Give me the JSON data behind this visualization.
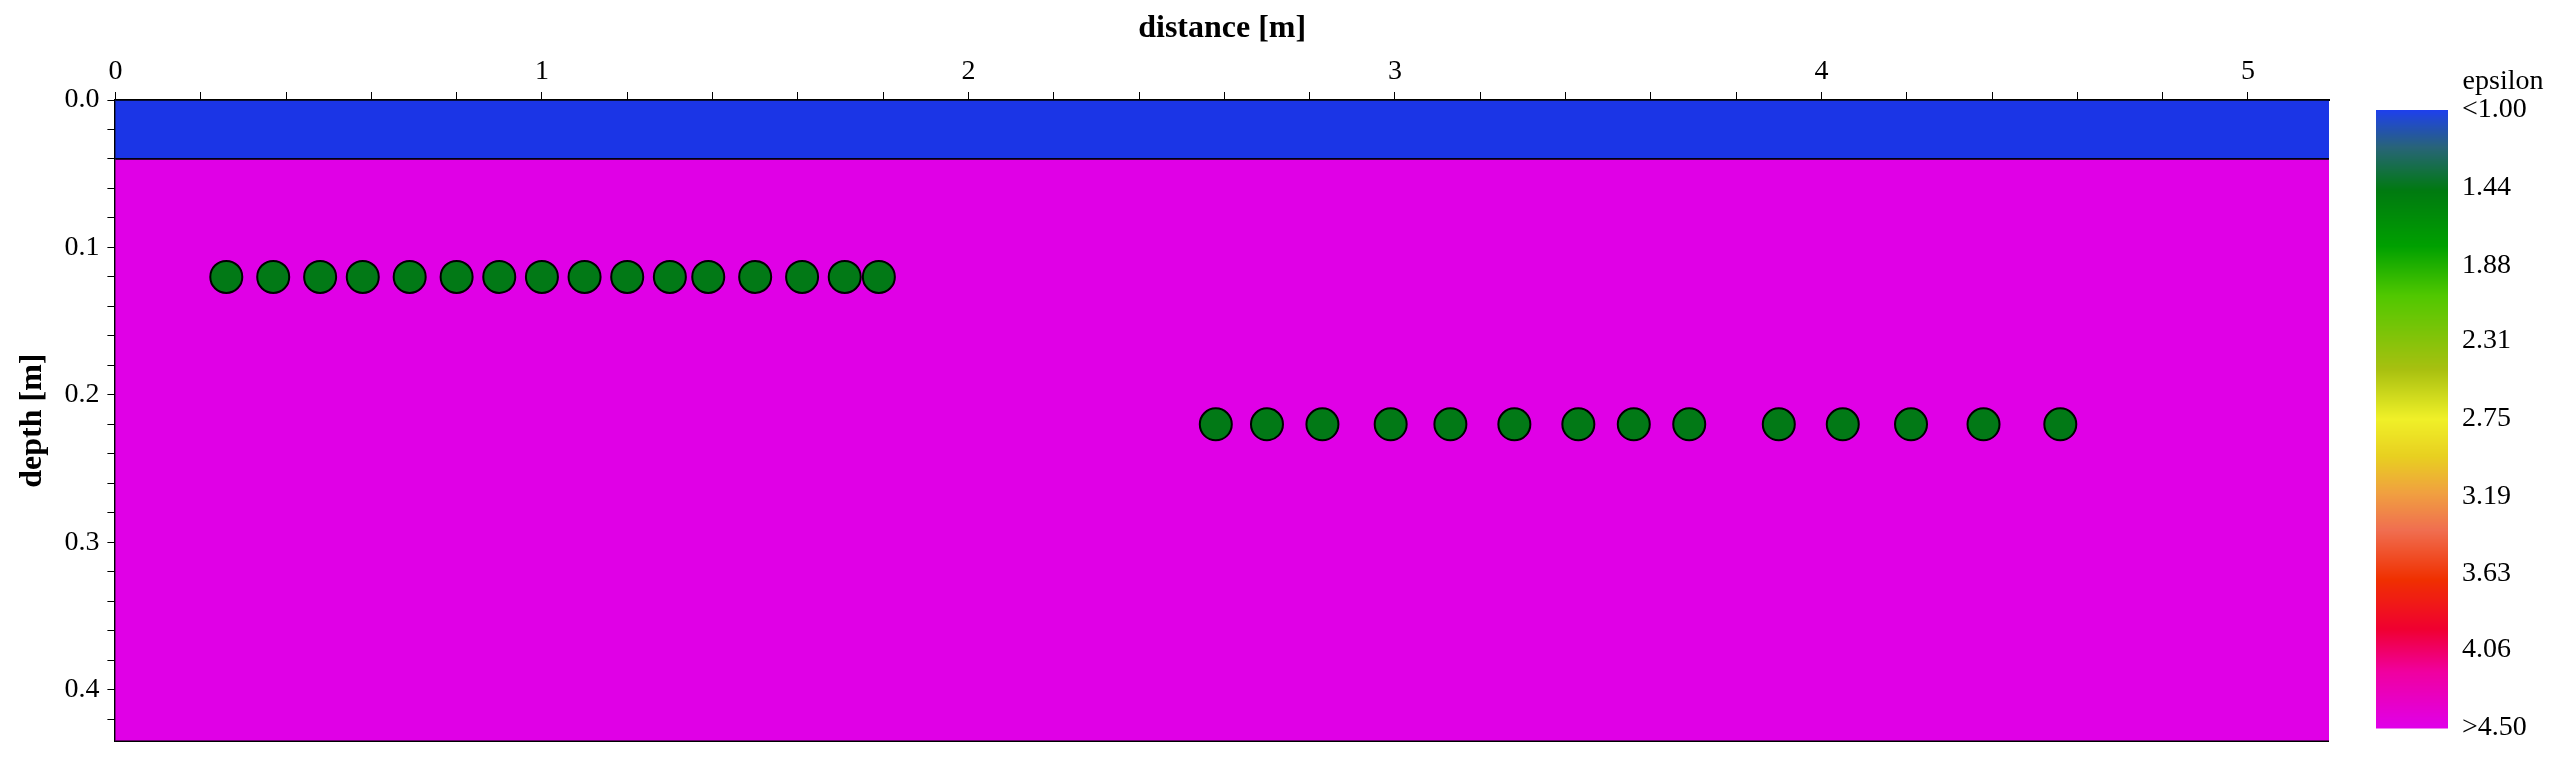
{
  "chart_data": {
    "type": "scatter",
    "xlabel": "distance [m]",
    "ylabel": "depth [m]",
    "clabel": "epsilon",
    "xlim": [
      0,
      5.19
    ],
    "xticks": [
      0,
      {
        "value": 0.2,
        "label": null
      },
      {
        "value": 0.4,
        "label": null
      },
      {
        "value": 0.6,
        "label": null
      },
      {
        "value": 0.8,
        "label": null
      },
      1,
      {
        "value": 1.2,
        "label": null
      },
      {
        "value": 1.4,
        "label": null
      },
      {
        "value": 1.6,
        "label": null
      },
      {
        "value": 1.8,
        "label": null
      },
      2,
      {
        "value": 2.2,
        "label": null
      },
      {
        "value": 2.4,
        "label": null
      },
      {
        "value": 2.6,
        "label": null
      },
      {
        "value": 2.8,
        "label": null
      },
      3,
      {
        "value": 3.2,
        "label": null
      },
      {
        "value": 3.4,
        "label": null
      },
      {
        "value": 3.6,
        "label": null
      },
      {
        "value": 3.8,
        "label": null
      },
      4,
      {
        "value": 4.2,
        "label": null
      },
      {
        "value": 4.4,
        "label": null
      },
      {
        "value": 4.6,
        "label": null
      },
      {
        "value": 4.8,
        "label": null
      },
      5
    ],
    "ylim": [
      0.435,
      0
    ],
    "yticks": [
      {
        "value": 0,
        "label": "0.0"
      },
      {
        "value": 0.02,
        "label": null
      },
      {
        "value": 0.04,
        "label": null
      },
      {
        "value": 0.06,
        "label": null
      },
      {
        "value": 0.08,
        "label": null
      },
      0.1,
      {
        "value": 0.12,
        "label": null
      },
      {
        "value": 0.14,
        "label": null
      },
      {
        "value": 0.16,
        "label": null
      },
      {
        "value": 0.18,
        "label": null
      },
      0.2,
      {
        "value": 0.22,
        "label": null
      },
      {
        "value": 0.24,
        "label": null
      },
      {
        "value": 0.26,
        "label": null
      },
      {
        "value": 0.28,
        "label": null
      },
      0.3,
      {
        "value": 0.32,
        "label": null
      },
      {
        "value": 0.34,
        "label": null
      },
      {
        "value": 0.36,
        "label": null
      },
      {
        "value": 0.38,
        "label": null
      },
      0.4,
      {
        "value": 0.42,
        "label": null
      }
    ],
    "clim": [
      1,
      4.5
    ],
    "cticks": [
      {
        "value": 1,
        "label": "<1.00"
      },
      1.44,
      1.88,
      2.31,
      2.75,
      3.19,
      3.63,
      4.06,
      {
        "value": 4.5,
        "label": ">4.50"
      }
    ],
    "bands": [
      {
        "axis": "y",
        "from": 0,
        "to": 0.04,
        "color": "#1b35e6"
      },
      {
        "axis": "y",
        "from": 0.04,
        "to": 0.435,
        "color": "#e000e6"
      }
    ],
    "x": [
      0.26,
      0.37,
      0.48,
      0.58,
      0.69,
      0.8,
      0.9,
      1.0,
      1.1,
      1.2,
      1.3,
      1.39,
      1.5,
      1.61,
      1.71,
      1.79,
      2.58,
      2.7,
      2.83,
      2.99,
      3.13,
      3.28,
      3.43,
      3.56,
      3.69,
      3.9,
      4.05,
      4.21,
      4.38,
      4.56
    ],
    "values": [
      0.12,
      0.12,
      0.12,
      0.12,
      0.12,
      0.12,
      0.12,
      0.12,
      0.12,
      0.12,
      0.12,
      0.12,
      0.12,
      0.12,
      0.12,
      0.12,
      0.22,
      0.22,
      0.22,
      0.22,
      0.22,
      0.22,
      0.22,
      0.22,
      0.22,
      0.22,
      0.22,
      0.22,
      0.22,
      0.22
    ],
    "cvalues": [
      1.44,
      1.44,
      1.44,
      1.44,
      1.44,
      1.44,
      1.44,
      1.44,
      1.44,
      1.44,
      1.44,
      1.44,
      1.44,
      1.44,
      1.44,
      1.44,
      1.44,
      1.44,
      1.44,
      1.44,
      1.44,
      1.44,
      1.44,
      1.44,
      1.44,
      1.44,
      1.44,
      1.44,
      1.44,
      1.44
    ]
  }
}
